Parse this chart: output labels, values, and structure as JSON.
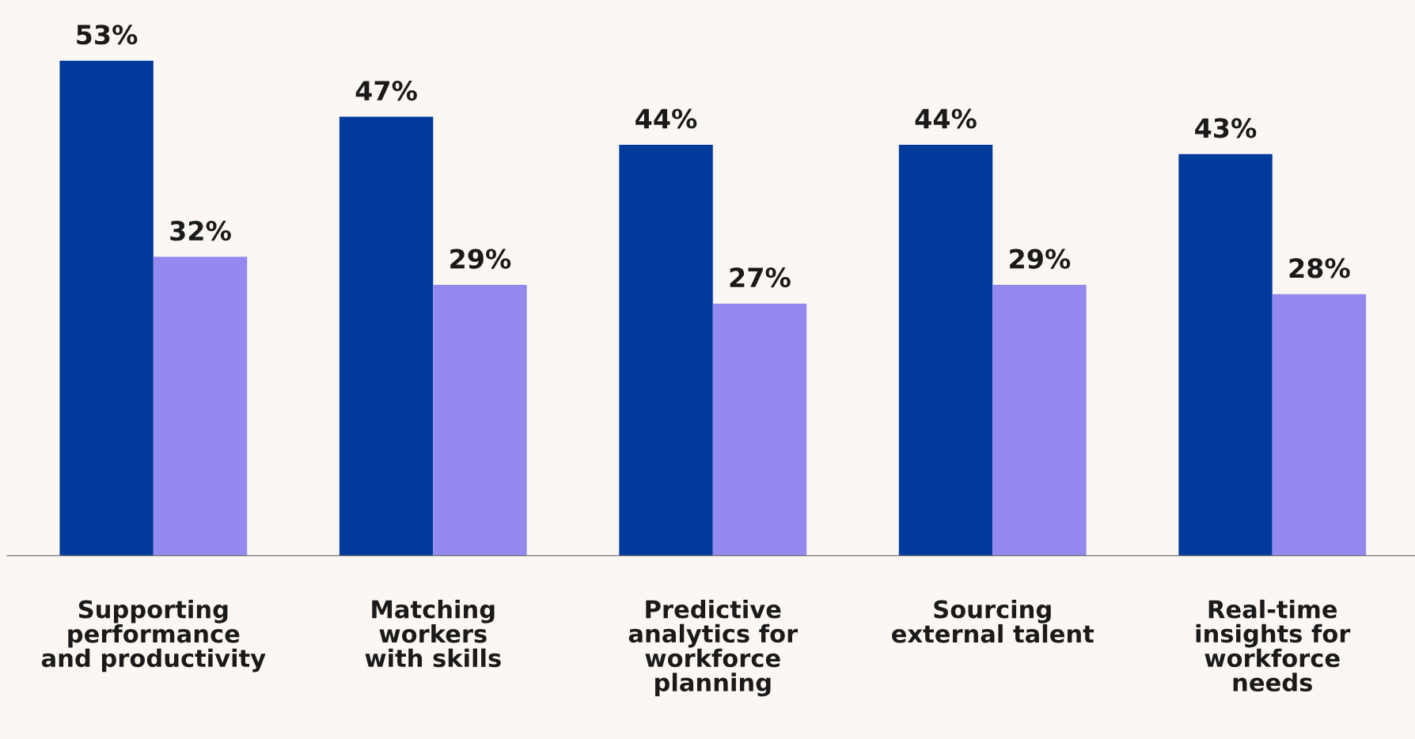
{
  "chart_data": {
    "type": "bar",
    "categories": [
      "Supporting\nperformance\nand productivity",
      "Matching\nworkers\nwith skills",
      "Predictive\nanalytics for\nworkforce\nplanning",
      "Sourcing\nexternal talent",
      "Real-time\ninsights for\nworkforce\nneeds"
    ],
    "series": [
      {
        "color": "#003a9b",
        "values": [
          53,
          47,
          44,
          44,
          43
        ],
        "value_labels": [
          "53%",
          "47%",
          "44%",
          "44%",
          "43%"
        ]
      },
      {
        "color": "#9489ee",
        "values": [
          32,
          29,
          27,
          29,
          28
        ],
        "value_labels": [
          "32%",
          "29%",
          "27%",
          "29%",
          "28%"
        ]
      }
    ],
    "tick_labels": "x",
    "grid": false,
    "legend": false
  }
}
